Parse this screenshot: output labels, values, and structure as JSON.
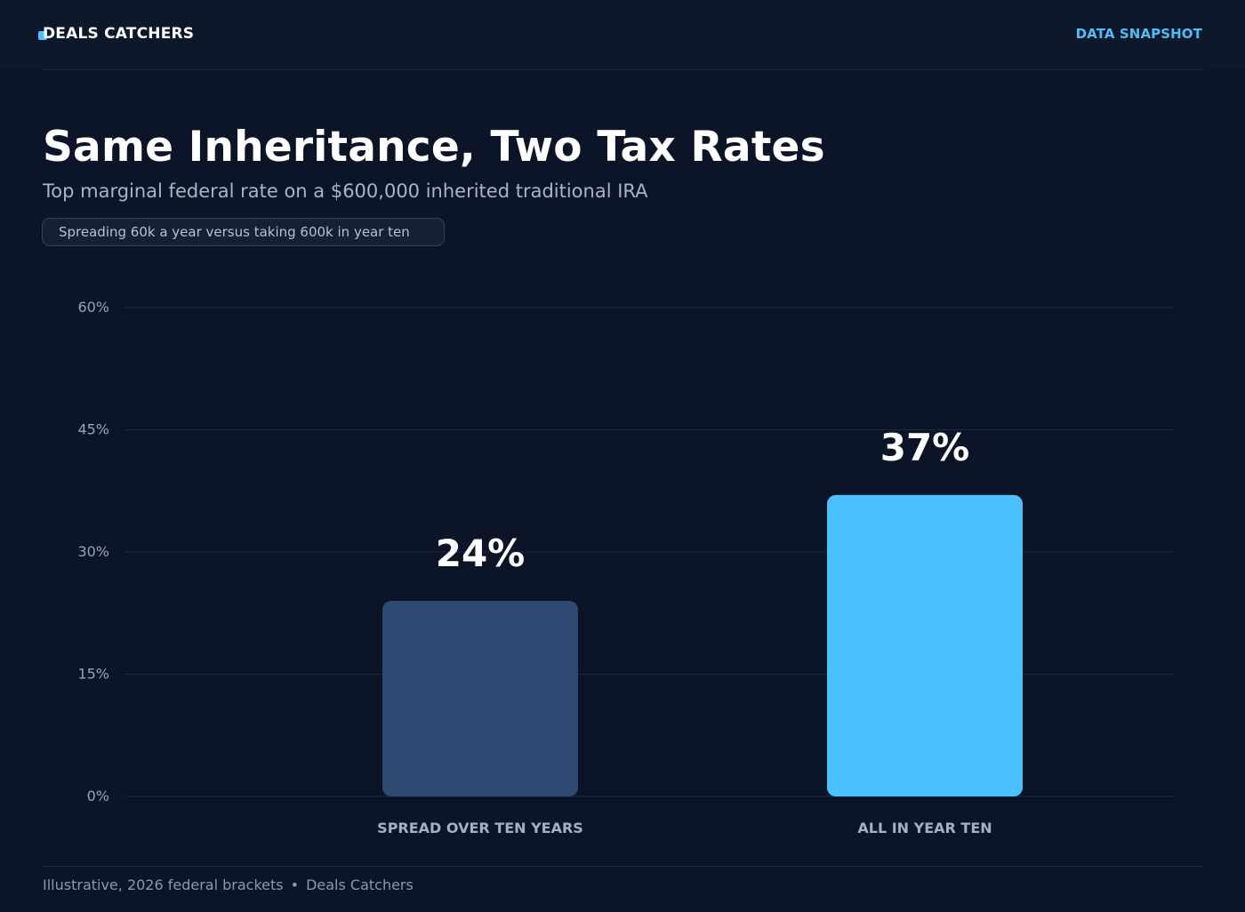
{
  "header": {
    "brand": "DEALS CATCHERS",
    "nav_label": "DATA SNAPSHOT"
  },
  "chart_data": {
    "type": "bar",
    "title": "Same Inheritance, Two Tax Rates",
    "subtitle": "Top marginal federal rate on a $600,000 inherited traditional IRA",
    "tag": "Spreading 60k a year versus taking 600k in year ten",
    "categories": [
      "SPREAD OVER TEN YEARS",
      "ALL IN YEAR TEN"
    ],
    "values": [
      24,
      37
    ],
    "value_labels": [
      "24%",
      "37%"
    ],
    "bar_colors": [
      "#2e4a73",
      "#4cc1ff"
    ],
    "ylim": [
      0,
      60
    ],
    "yticks": [
      0,
      15,
      30,
      45,
      60
    ],
    "ytick_labels": [
      "0%",
      "15%",
      "30%",
      "45%",
      "60%"
    ],
    "grid": true,
    "legend": "none"
  },
  "footer": {
    "note": "Illustrative, 2026 federal brackets",
    "separator": "•",
    "source": "Deals Catchers"
  }
}
